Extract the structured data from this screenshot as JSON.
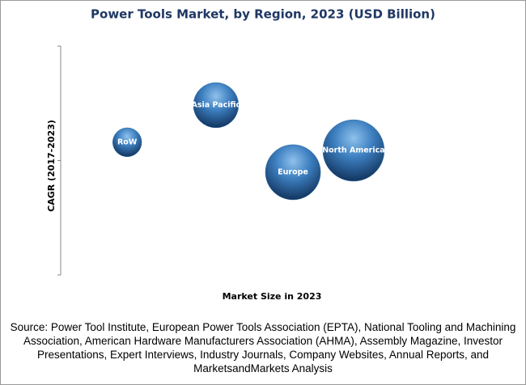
{
  "chart_data": {
    "type": "bubble",
    "title": "Power Tools Market, by Region, 2023 (USD Billion)",
    "x_label": "Market Size in 2023",
    "y_label": "CAGR (2017-2023)",
    "categories": [
      "RoW",
      "Asia Pacific",
      "Europe",
      "North America"
    ],
    "x": [
      15.8,
      36.9,
      55.2,
      69.6
    ],
    "values": [
      58,
      74.2,
      44.9,
      54.4
    ],
    "sizes": [
      3.2,
      7.8,
      11.6,
      14.4
    ],
    "color": "#2e6da4",
    "xlim": [
      0,
      100
    ],
    "ylim": [
      0,
      100
    ],
    "yticks": [
      0,
      50,
      100
    ],
    "source": "Source: Power Tool Institute, European Power Tools Association (EPTA), National Tooling and Machining Association, American Hardware Manufacturers Association (AHMA), Assembly Magazine, Investor Presentations, Expert Interviews, Industry Journals, Company Websites, Annual Reports, and MarketsandMarkets Analysis"
  }
}
